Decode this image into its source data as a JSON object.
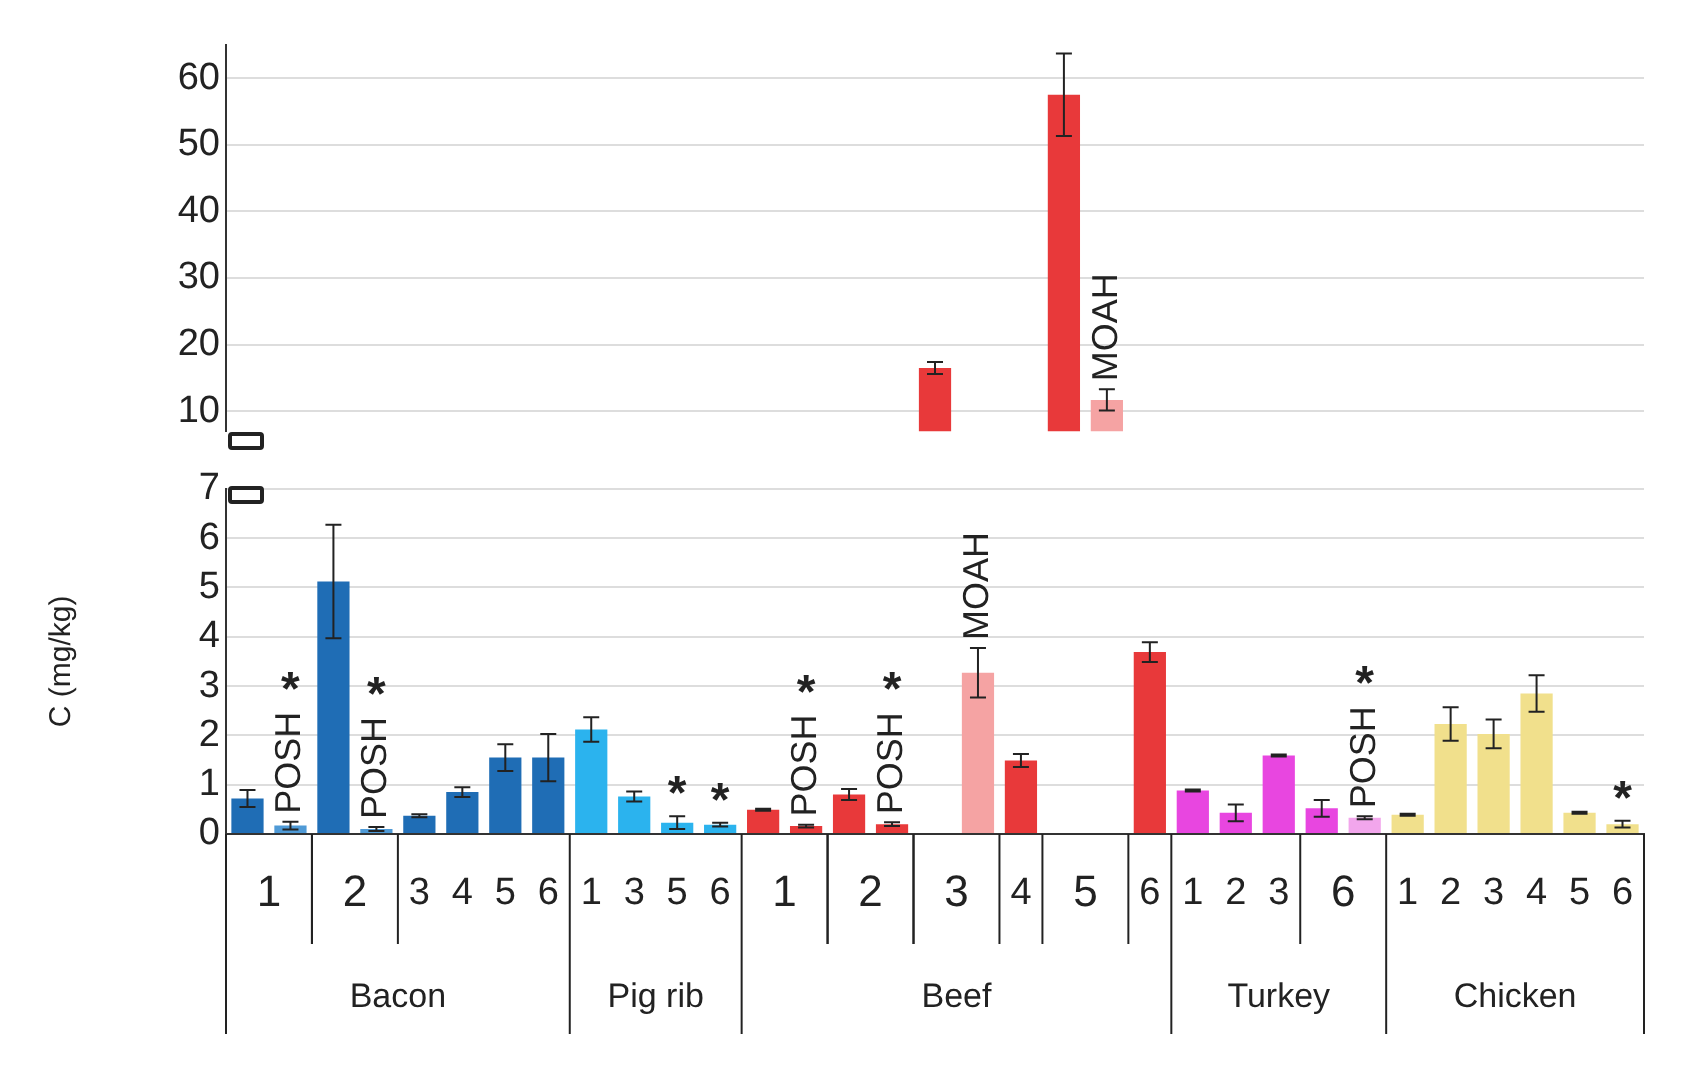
{
  "chart_data": [
    {
      "type": "bar",
      "categories": [
        "1",
        null,
        "2",
        null,
        "3",
        "4",
        "5",
        "6",
        "1",
        "3",
        "5",
        "6",
        "1",
        null,
        "2",
        null,
        "3",
        null,
        "4",
        "5",
        null,
        "6",
        "1",
        "2",
        "3",
        "6",
        null,
        "1",
        "2",
        "3",
        "4",
        "5",
        "6"
      ],
      "values": [
        null,
        null,
        null,
        null,
        null,
        null,
        null,
        null,
        null,
        null,
        null,
        null,
        null,
        null,
        null,
        null,
        16.5,
        null,
        null,
        57.5,
        11.7,
        null,
        null,
        null,
        null,
        null,
        null,
        null,
        null,
        null,
        null,
        null,
        null
      ],
      "errors": [
        null,
        null,
        null,
        null,
        null,
        null,
        null,
        null,
        null,
        null,
        null,
        null,
        null,
        null,
        null,
        null,
        0.9,
        null,
        null,
        6.2,
        1.6,
        null,
        null,
        null,
        null,
        null,
        null,
        null,
        null,
        null,
        null,
        null,
        null
      ],
      "colors": [
        "#1f6db5",
        "#4f9ad6",
        "#1f6db5",
        "#4f9ad6",
        "#1f6db5",
        "#1f6db5",
        "#1f6db5",
        "#1f6db5",
        "#2bb3ee",
        "#2bb3ee",
        "#2bb3ee",
        "#2bb3ee",
        "#e8393a",
        "#e8393a",
        "#e8393a",
        "#e8393a",
        "#e8393a",
        "#f5a3a3",
        "#e8393a",
        "#e8393a",
        "#f5a3a3",
        "#e8393a",
        "#e846e0",
        "#e846e0",
        "#e846e0",
        "#e846e0",
        "#f2a6ec",
        "#f1e08c",
        "#f1e08c",
        "#f1e08c",
        "#f1e08c",
        "#f1e08c",
        "#f1e08c"
      ],
      "ylim": [
        7,
        65
      ],
      "yticks": [
        10,
        20,
        30,
        40,
        50,
        60
      ],
      "grid": "y",
      "tick_labels": "y",
      "annotations": [
        "MOAH"
      ]
    },
    {
      "type": "bar",
      "ylabel": "C (mg/kg)",
      "categories": [
        "1",
        null,
        "2",
        null,
        "3",
        "4",
        "5",
        "6",
        "1",
        "3",
        "5",
        "6",
        "1",
        null,
        "2",
        null,
        "3",
        null,
        "4",
        "5",
        null,
        "6",
        "1",
        "2",
        "3",
        "6",
        null,
        "1",
        "2",
        "3",
        "4",
        "5",
        "6"
      ],
      "values": [
        0.72,
        0.17,
        5.12,
        0.1,
        0.37,
        0.85,
        1.55,
        1.55,
        2.12,
        0.76,
        0.23,
        0.19,
        0.49,
        0.16,
        0.8,
        0.2,
        null,
        3.27,
        1.49,
        null,
        null,
        3.69,
        0.88,
        0.43,
        1.59,
        0.52,
        0.33,
        0.39,
        2.23,
        2.03,
        2.85,
        0.43,
        0.2
      ],
      "errors": [
        0.17,
        0.08,
        1.15,
        0.04,
        0.03,
        0.1,
        0.27,
        0.48,
        0.25,
        0.1,
        0.13,
        0.04,
        0.02,
        0.03,
        0.11,
        0.04,
        null,
        0.5,
        0.13,
        null,
        null,
        0.2,
        0.02,
        0.17,
        0.02,
        0.17,
        0.03,
        0.02,
        0.34,
        0.29,
        0.37,
        0.02,
        0.07
      ],
      "colors": [
        "#1f6db5",
        "#4f9ad6",
        "#1f6db5",
        "#4f9ad6",
        "#1f6db5",
        "#1f6db5",
        "#1f6db5",
        "#1f6db5",
        "#2bb3ee",
        "#2bb3ee",
        "#2bb3ee",
        "#2bb3ee",
        "#e8393a",
        "#e8393a",
        "#e8393a",
        "#e8393a",
        "#e8393a",
        "#f5a3a3",
        "#e8393a",
        "#e8393a",
        "#f5a3a3",
        "#e8393a",
        "#e846e0",
        "#e846e0",
        "#e846e0",
        "#e846e0",
        "#f2a6ec",
        "#f1e08c",
        "#f1e08c",
        "#f1e08c",
        "#f1e08c",
        "#f1e08c",
        "#f1e08c"
      ],
      "ylim": [
        0,
        7
      ],
      "yticks": [
        0,
        1,
        2,
        3,
        4,
        5,
        6,
        7
      ],
      "grid": "y",
      "annotations": [
        "Bacon",
        "Pig rib",
        "Beef",
        "Turkey",
        "Chicken",
        "POSH",
        "*",
        "POSH",
        "*",
        "*",
        "*",
        "POSH",
        "*",
        "POSH",
        "*",
        "MOAH",
        "POSH",
        "*",
        "*"
      ]
    }
  ]
}
